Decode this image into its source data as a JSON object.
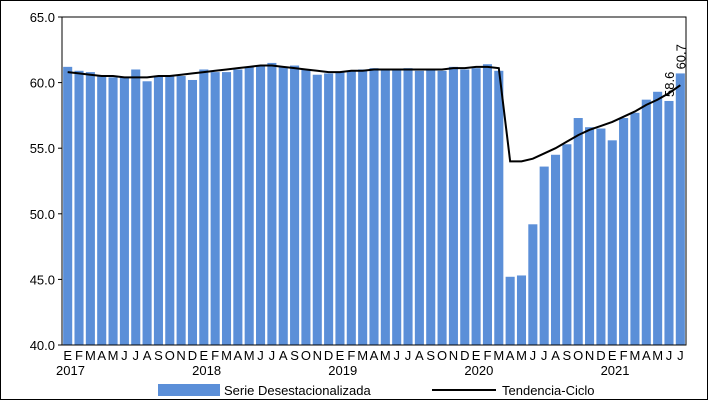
{
  "chart_data": {
    "type": "bar_line",
    "groups": [
      {
        "label": "2017",
        "categories": [
          "E",
          "F",
          "M",
          "A",
          "M",
          "J",
          "J",
          "A",
          "S",
          "O",
          "N",
          "D"
        ]
      },
      {
        "label": "2018",
        "categories": [
          "E",
          "F",
          "M",
          "A",
          "M",
          "J",
          "J",
          "A",
          "S",
          "O",
          "N",
          "D"
        ]
      },
      {
        "label": "2019",
        "categories": [
          "E",
          "F",
          "M",
          "A",
          "M",
          "J",
          "J",
          "A",
          "S",
          "O",
          "N",
          "D"
        ]
      },
      {
        "label": "2020",
        "categories": [
          "E",
          "F",
          "M",
          "A",
          "M",
          "J",
          "J",
          "A",
          "S",
          "O",
          "N",
          "D"
        ]
      },
      {
        "label": "2021",
        "categories": [
          "E",
          "F",
          "M",
          "A",
          "M",
          "J",
          "J"
        ]
      }
    ],
    "series": [
      {
        "name": "Serie Desestacionalizada",
        "type": "bar",
        "color": "#5b8fd8",
        "values": [
          61.2,
          60.9,
          60.8,
          60.5,
          60.4,
          60.4,
          61.0,
          60.1,
          60.5,
          60.5,
          60.5,
          60.2,
          61.0,
          60.8,
          60.8,
          61.0,
          61.2,
          61.3,
          61.5,
          61.2,
          61.3,
          61.0,
          60.6,
          60.7,
          60.8,
          60.9,
          61.0,
          61.1,
          61.0,
          61.0,
          61.1,
          60.9,
          61.0,
          60.9,
          61.2,
          61.0,
          61.1,
          61.4,
          60.9,
          45.2,
          45.3,
          49.2,
          53.6,
          54.5,
          55.3,
          57.3,
          56.6,
          56.5,
          55.6,
          57.3,
          57.7,
          58.7,
          59.3,
          58.6,
          60.7
        ],
        "value_labels": [
          null,
          null,
          null,
          null,
          null,
          null,
          null,
          null,
          null,
          null,
          null,
          null,
          null,
          null,
          null,
          null,
          null,
          null,
          null,
          null,
          null,
          null,
          null,
          null,
          null,
          null,
          null,
          null,
          null,
          null,
          null,
          null,
          null,
          null,
          null,
          null,
          null,
          null,
          null,
          null,
          null,
          null,
          null,
          null,
          null,
          null,
          null,
          null,
          null,
          null,
          null,
          null,
          null,
          "58.6",
          "60.7"
        ]
      },
      {
        "name": "Tendencia-Ciclo",
        "type": "line",
        "color": "#000000",
        "values": [
          60.8,
          60.7,
          60.6,
          60.5,
          60.5,
          60.4,
          60.4,
          60.4,
          60.5,
          60.5,
          60.6,
          60.7,
          60.8,
          60.9,
          61.0,
          61.1,
          61.2,
          61.3,
          61.3,
          61.2,
          61.1,
          61.0,
          60.9,
          60.8,
          60.8,
          60.9,
          60.9,
          61.0,
          61.0,
          61.0,
          61.0,
          61.0,
          61.0,
          61.0,
          61.1,
          61.1,
          61.2,
          61.2,
          61.1,
          54.0,
          54.0,
          54.2,
          54.6,
          55.0,
          55.5,
          56.0,
          56.4,
          56.7,
          57.0,
          57.4,
          57.8,
          58.3,
          58.7,
          59.2,
          59.8
        ]
      }
    ],
    "ylim": [
      40,
      65
    ],
    "yticks": [
      {
        "value": 40,
        "label": "40.0"
      },
      {
        "value": 45,
        "label": "45.0"
      },
      {
        "value": 50,
        "label": "50.0"
      },
      {
        "value": 55,
        "label": "55.0"
      },
      {
        "value": 60,
        "label": "60.0"
      },
      {
        "value": 65,
        "label": "65.0"
      }
    ],
    "legend": "bottom"
  }
}
